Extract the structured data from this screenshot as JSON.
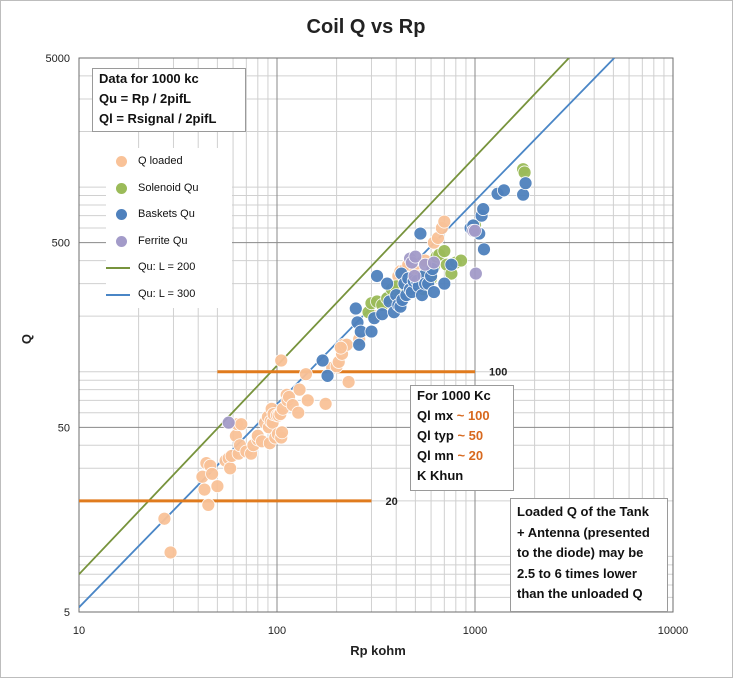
{
  "chart_data": {
    "type": "scatter",
    "title": "Coil Q vs Rp",
    "xlabel": "Rp kohm",
    "ylabel": "Q",
    "xscale": "log",
    "yscale": "log",
    "xlim": [
      10,
      10000
    ],
    "ylim": [
      5,
      5000
    ],
    "x_ticks": [
      "10",
      "100",
      "1000",
      "10000"
    ],
    "y_ticks": [
      "5",
      "50",
      "500",
      "5000"
    ],
    "grid": true,
    "legend": [
      "Q loaded",
      "Solenoid Qu",
      "Baskets Qu",
      "Ferrite Qu",
      "Qu: L = 200",
      "Qu: L = 300"
    ],
    "series": [
      {
        "name": "Q loaded",
        "color": "#f9c298",
        "points": [
          [
            27,
            16
          ],
          [
            29,
            10.5
          ],
          [
            42,
            27
          ],
          [
            43,
            23
          ],
          [
            44,
            32
          ],
          [
            45,
            19
          ],
          [
            46,
            31
          ],
          [
            47,
            28
          ],
          [
            50,
            24
          ],
          [
            55,
            33
          ],
          [
            57,
            34
          ],
          [
            58,
            30
          ],
          [
            59,
            35
          ],
          [
            62,
            45
          ],
          [
            63,
            52
          ],
          [
            64,
            36
          ],
          [
            65,
            40
          ],
          [
            66,
            52
          ],
          [
            70,
            37
          ],
          [
            74,
            36
          ],
          [
            76,
            40
          ],
          [
            80,
            43
          ],
          [
            80,
            45
          ],
          [
            84,
            42
          ],
          [
            87,
            53
          ],
          [
            90,
            57
          ],
          [
            91,
            50
          ],
          [
            92,
            41
          ],
          [
            93,
            54
          ],
          [
            94,
            63
          ],
          [
            95,
            53
          ],
          [
            96,
            59
          ],
          [
            98,
            44
          ],
          [
            100,
            58
          ],
          [
            101,
            46
          ],
          [
            102,
            58
          ],
          [
            104,
            59
          ],
          [
            105,
            44
          ],
          [
            106,
            47
          ],
          [
            107,
            63
          ],
          [
            112,
            75
          ],
          [
            113,
            70
          ],
          [
            115,
            73
          ],
          [
            120,
            66
          ],
          [
            128,
            60
          ],
          [
            130,
            80
          ],
          [
            140,
            97
          ],
          [
            143,
            70
          ],
          [
            176,
            67
          ],
          [
            190,
            105
          ],
          [
            200,
            107
          ],
          [
            205,
            113
          ],
          [
            213,
            125
          ],
          [
            217,
            140
          ],
          [
            225,
            140
          ],
          [
            230,
            88
          ],
          [
            260,
            150
          ],
          [
            310,
            200
          ],
          [
            340,
            230
          ],
          [
            410,
            330
          ],
          [
            420,
            350
          ],
          [
            440,
            355
          ],
          [
            460,
            380
          ],
          [
            500,
            350
          ],
          [
            530,
            330
          ],
          [
            560,
            400
          ],
          [
            620,
            500
          ],
          [
            650,
            530
          ],
          [
            680,
            600
          ],
          [
            700,
            650
          ],
          [
            105,
            115
          ],
          [
            210,
            135
          ]
        ]
      },
      {
        "name": "Solenoid Qu",
        "color": "#9bbb59",
        "points": [
          [
            290,
            210
          ],
          [
            300,
            235
          ],
          [
            320,
            240
          ],
          [
            340,
            230
          ],
          [
            360,
            250
          ],
          [
            380,
            280
          ],
          [
            400,
            290
          ],
          [
            420,
            260
          ],
          [
            450,
            270
          ],
          [
            470,
            305
          ],
          [
            500,
            305
          ],
          [
            520,
            290
          ],
          [
            550,
            280
          ],
          [
            560,
            330
          ],
          [
            580,
            310
          ],
          [
            600,
            320
          ],
          [
            620,
            370
          ],
          [
            640,
            420
          ],
          [
            660,
            430
          ],
          [
            700,
            450
          ],
          [
            720,
            380
          ],
          [
            760,
            340
          ],
          [
            800,
            390
          ],
          [
            850,
            400
          ],
          [
            1000,
            620
          ],
          [
            1750,
            1250
          ],
          [
            1780,
            1200
          ]
        ]
      },
      {
        "name": "Baskets Qu",
        "color": "#4f81bd",
        "points": [
          [
            170,
            115
          ],
          [
            180,
            95
          ],
          [
            250,
            220
          ],
          [
            255,
            185
          ],
          [
            260,
            140
          ],
          [
            265,
            165
          ],
          [
            300,
            165
          ],
          [
            310,
            195
          ],
          [
            320,
            330
          ],
          [
            340,
            205
          ],
          [
            360,
            300
          ],
          [
            370,
            240
          ],
          [
            390,
            210
          ],
          [
            400,
            260
          ],
          [
            410,
            230
          ],
          [
            420,
            225
          ],
          [
            425,
            340
          ],
          [
            430,
            245
          ],
          [
            440,
            300
          ],
          [
            450,
            260
          ],
          [
            460,
            320
          ],
          [
            470,
            280
          ],
          [
            480,
            270
          ],
          [
            490,
            310
          ],
          [
            510,
            310
          ],
          [
            520,
            290
          ],
          [
            530,
            560
          ],
          [
            540,
            260
          ],
          [
            550,
            330
          ],
          [
            560,
            300
          ],
          [
            580,
            300
          ],
          [
            600,
            330
          ],
          [
            610,
            360
          ],
          [
            620,
            270
          ],
          [
            700,
            300
          ],
          [
            760,
            380
          ],
          [
            950,
            600
          ],
          [
            980,
            620
          ],
          [
            1050,
            560
          ],
          [
            1080,
            700
          ],
          [
            1100,
            760
          ],
          [
            1110,
            460
          ],
          [
            1300,
            920
          ],
          [
            1400,
            960
          ],
          [
            1750,
            910
          ],
          [
            1800,
            1050
          ]
        ]
      },
      {
        "name": "Ferrite Qu",
        "color": "#a39bc9",
        "points": [
          [
            57,
            53
          ],
          [
            470,
            410
          ],
          [
            480,
            390
          ],
          [
            500,
            420
          ],
          [
            560,
            380
          ],
          [
            620,
            390
          ],
          [
            980,
            580
          ],
          [
            1000,
            580
          ],
          [
            1010,
            340
          ],
          [
            495,
            330
          ]
        ]
      }
    ],
    "lines": [
      {
        "name": "Qu: L = 200",
        "color": "#77933c",
        "x": [
          10,
          2980
        ],
        "y": [
          8,
          5000
        ]
      },
      {
        "name": "Qu: L = 300",
        "color": "#4a86c6",
        "x": [
          10,
          5050
        ],
        "y": [
          5.3,
          5000
        ]
      }
    ],
    "reference_lines": [
      {
        "value": 100,
        "label": "100",
        "color": "#e07b1e",
        "x": [
          50,
          1000
        ]
      },
      {
        "value": 20,
        "label": "20",
        "color": "#e07b1e",
        "x": [
          10,
          300
        ]
      }
    ]
  },
  "box_formula": {
    "line1": "Data for 1000 kc",
    "line2": "Qu = Rp / 2pifL",
    "line3": "Ql = Rsignal / 2pifL"
  },
  "box_kc": {
    "line1": "For 1000 Kc",
    "line2_label": "Ql mx ",
    "line2_value": "~ 100",
    "line3_label": "Ql typ ",
    "line3_value": "~ 50",
    "line4_label": "Ql mn ",
    "line4_value": "~ 20",
    "line5": "K Khun"
  },
  "box_note": {
    "line1": "Loaded Q of the Tank",
    "line2": "+ Antenna (presented",
    "line3": "to the diode) may be",
    "line4": "2.5 to 6 times lower",
    "line5": "than the unloaded Q"
  }
}
